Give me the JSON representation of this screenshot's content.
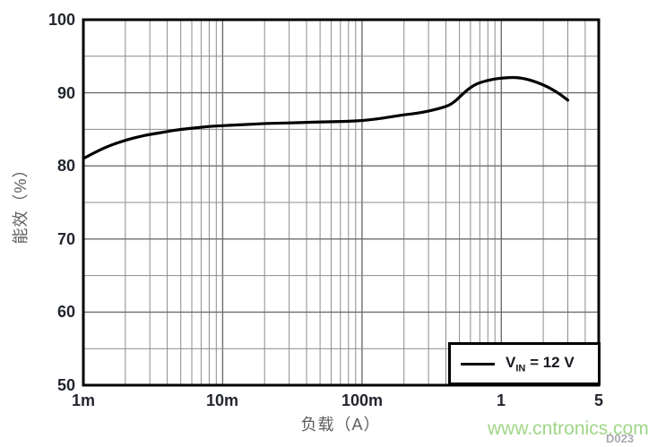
{
  "watermark": {
    "text": "www.cntronics.com",
    "color": "#8fcf74"
  },
  "figure_code": {
    "text": "D023",
    "color": "#a9a9b2"
  },
  "chart_data": {
    "type": "line",
    "title": "",
    "xlabel": "负载（A）",
    "ylabel": "能效（%）",
    "x_scale": "log",
    "xlim": [
      0.001,
      5
    ],
    "ylim": [
      50,
      100
    ],
    "grid": true,
    "x_ticks": [
      {
        "value": 0.001,
        "label": "1m"
      },
      {
        "value": 0.01,
        "label": "10m"
      },
      {
        "value": 0.1,
        "label": "100m"
      },
      {
        "value": 1,
        "label": "1"
      },
      {
        "value": 5,
        "label": "5"
      }
    ],
    "y_ticks": [
      {
        "value": 50,
        "label": "50"
      },
      {
        "value": 60,
        "label": "60"
      },
      {
        "value": 70,
        "label": "70"
      },
      {
        "value": 80,
        "label": "80"
      },
      {
        "value": 90,
        "label": "90"
      },
      {
        "value": 100,
        "label": "100"
      }
    ],
    "y_minor_ticks": [
      55,
      65,
      75,
      85,
      95
    ],
    "legend": {
      "position": "bottom-right",
      "entries": [
        {
          "name": "VIN = 12 V",
          "prefix": "V",
          "sub": "IN",
          "suffix": " = 12 V",
          "color": "#000000"
        }
      ]
    },
    "series": [
      {
        "name": "VIN = 12 V",
        "color": "#000000",
        "points": [
          [
            0.001,
            81.0
          ],
          [
            0.00125,
            82.0
          ],
          [
            0.0016,
            82.9
          ],
          [
            0.002,
            83.5
          ],
          [
            0.0025,
            84.0
          ],
          [
            0.003,
            84.3
          ],
          [
            0.004,
            84.7
          ],
          [
            0.005,
            85.0
          ],
          [
            0.0063,
            85.2
          ],
          [
            0.008,
            85.4
          ],
          [
            0.01,
            85.5
          ],
          [
            0.0125,
            85.6
          ],
          [
            0.016,
            85.7
          ],
          [
            0.02,
            85.8
          ],
          [
            0.025,
            85.85
          ],
          [
            0.032,
            85.9
          ],
          [
            0.04,
            85.95
          ],
          [
            0.05,
            86.0
          ],
          [
            0.063,
            86.05
          ],
          [
            0.08,
            86.1
          ],
          [
            0.1,
            86.2
          ],
          [
            0.125,
            86.4
          ],
          [
            0.16,
            86.7
          ],
          [
            0.2,
            87.0
          ],
          [
            0.25,
            87.2
          ],
          [
            0.32,
            87.6
          ],
          [
            0.4,
            88.1
          ],
          [
            0.45,
            88.6
          ],
          [
            0.5,
            89.4
          ],
          [
            0.56,
            90.3
          ],
          [
            0.63,
            91.0
          ],
          [
            0.7,
            91.4
          ],
          [
            0.8,
            91.7
          ],
          [
            0.9,
            91.9
          ],
          [
            1.0,
            92.0
          ],
          [
            1.15,
            92.1
          ],
          [
            1.3,
            92.1
          ],
          [
            1.5,
            91.9
          ],
          [
            1.7,
            91.6
          ],
          [
            2.0,
            91.1
          ],
          [
            2.3,
            90.5
          ],
          [
            2.6,
            89.9
          ],
          [
            3.0,
            89.0
          ]
        ]
      }
    ]
  },
  "colors": {
    "frame": "#000000",
    "grid_major": "#6e6e6e",
    "grid_minor": "#8c8c8c",
    "curve": "#000000"
  }
}
